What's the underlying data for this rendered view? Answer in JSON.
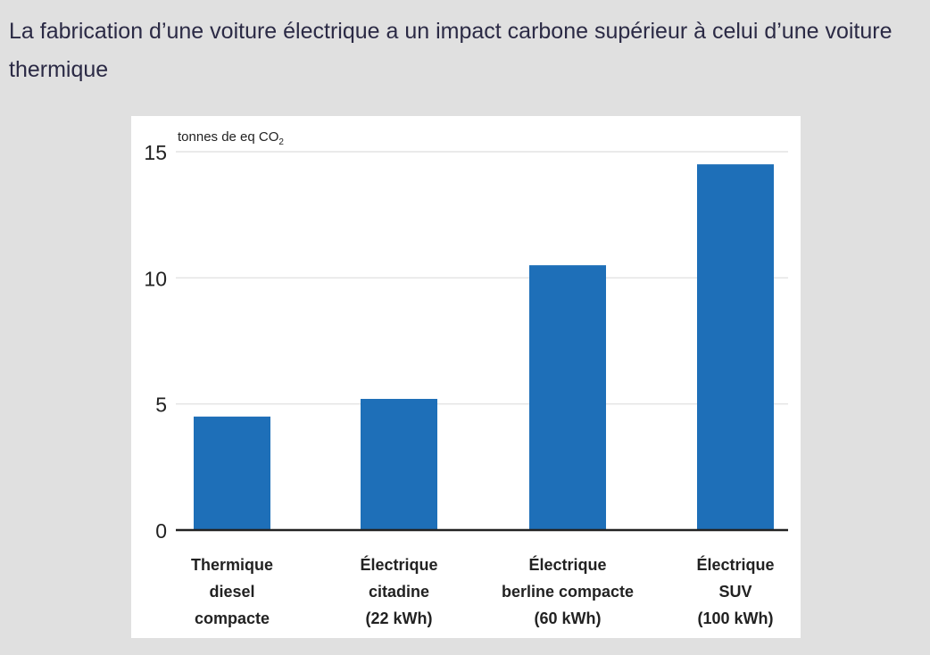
{
  "title": "La fabrication d’une voiture électrique a un impact carbone supérieur à celui d’une voiture thermique",
  "chart_data": {
    "type": "bar",
    "title": "La fabrication d’une voiture électrique a un impact carbone supérieur à celui d’une voiture thermique",
    "ylabel": "tonnes de eq CO",
    "ylabel_subscript": "2",
    "xlabel": "",
    "ylim": [
      0,
      15
    ],
    "yticks": [
      "0",
      "5",
      "10",
      "15"
    ],
    "grid": true,
    "categories": [
      [
        "Thermique",
        "diesel",
        "compacte"
      ],
      [
        "Électrique",
        "citadine",
        "(22 kWh)"
      ],
      [
        "Électrique",
        "berline compacte",
        "(60 kWh)"
      ],
      [
        "Électrique",
        "SUV",
        "(100 kWh)"
      ]
    ],
    "values": [
      4.5,
      5.2,
      10.5,
      14.5
    ],
    "bar_color": "#1e6fb8"
  }
}
